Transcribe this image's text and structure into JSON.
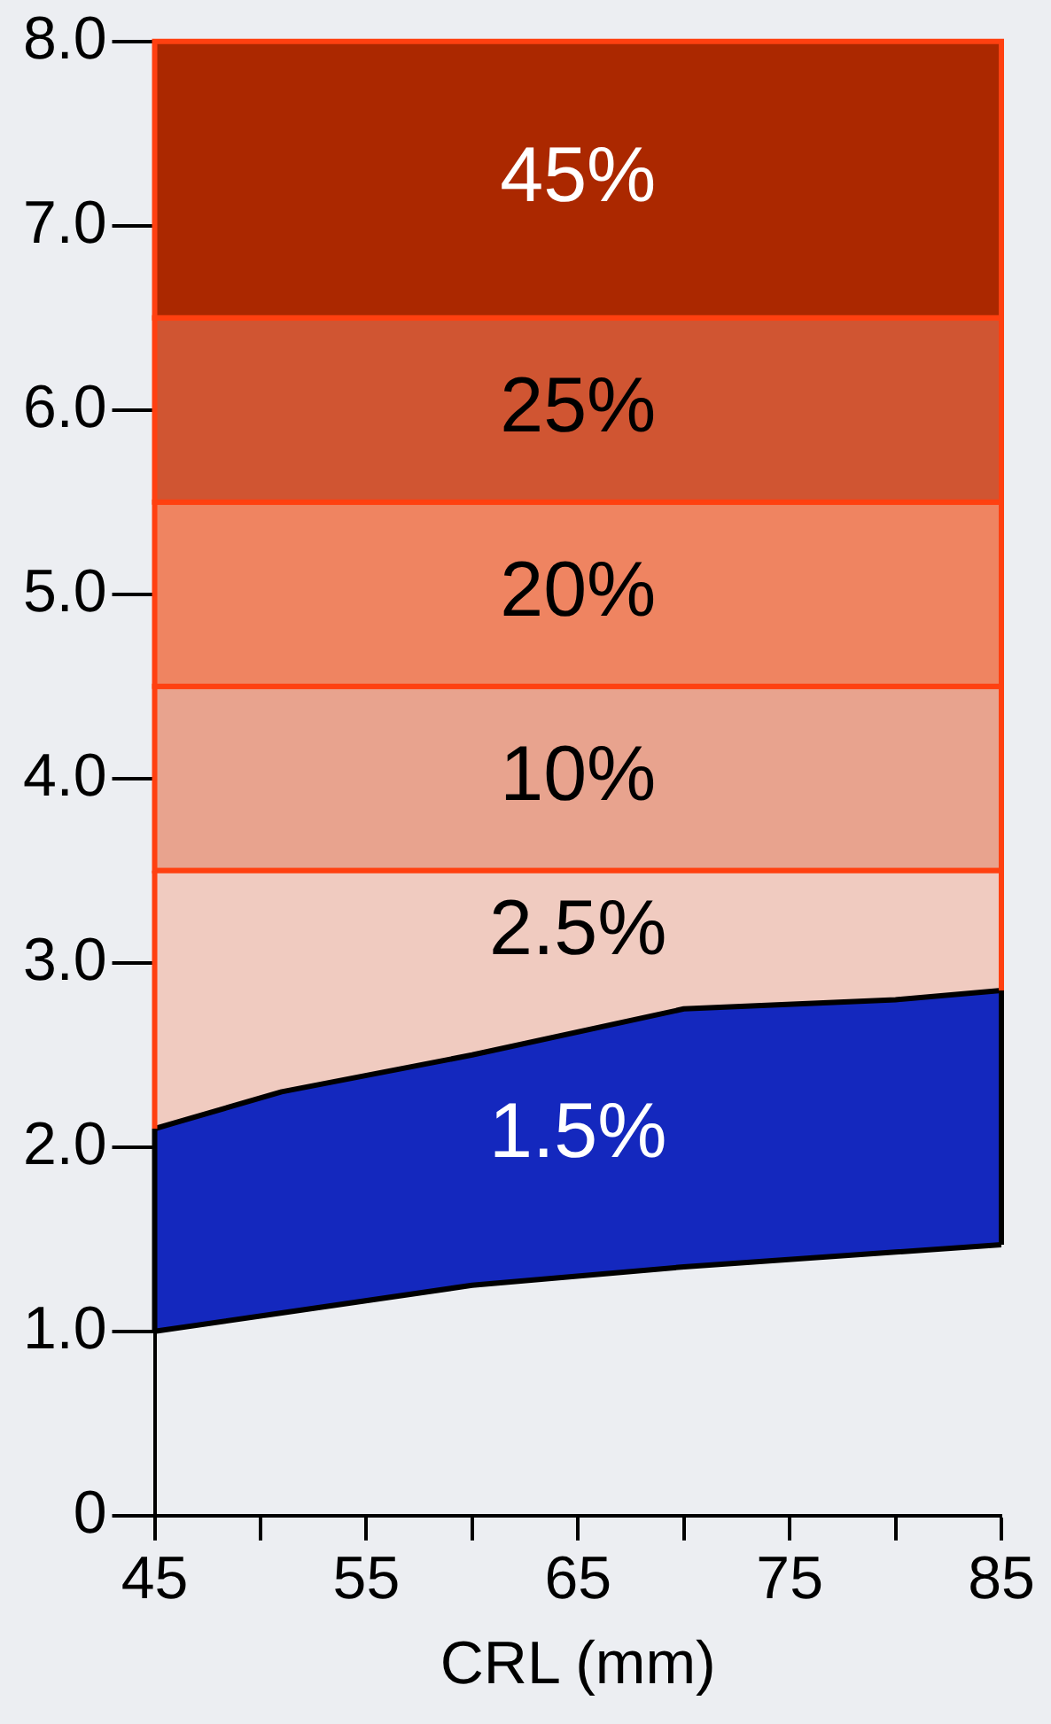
{
  "chart_data": {
    "type": "area",
    "xlabel": "CRL (mm)",
    "xlim": [
      45,
      85
    ],
    "xticks": [
      45,
      {
        "value": 50,
        "label": null
      },
      55,
      {
        "value": 60,
        "label": null
      },
      65,
      {
        "value": 70,
        "label": null
      },
      75,
      {
        "value": 80,
        "label": null
      },
      85
    ],
    "ylim": [
      0,
      8
    ],
    "yticks": [
      {
        "value": 0,
        "label": "0"
      },
      {
        "value": 1,
        "label": "1.0"
      },
      {
        "value": 2,
        "label": "2.0"
      },
      {
        "value": 3,
        "label": "3.0"
      },
      {
        "value": 4,
        "label": "4.0"
      },
      {
        "value": 5,
        "label": "5.0"
      },
      {
        "value": 6,
        "label": "6.0"
      },
      {
        "value": 7,
        "label": "7.0"
      },
      {
        "value": 8,
        "label": "8.0"
      }
    ],
    "bands": [
      {
        "axis": "y",
        "from": 3.5,
        "to": 4.5,
        "label": "10%",
        "color": "#e8a38e"
      },
      {
        "axis": "y",
        "from": 4.5,
        "to": 5.5,
        "label": "20%",
        "color": "#ef8461"
      },
      {
        "axis": "y",
        "from": 5.5,
        "to": 6.5,
        "label": "25%",
        "color": "#d05532"
      },
      {
        "axis": "y",
        "from": 6.5,
        "to": 8,
        "label": "45%",
        "color": "#ab2800"
      }
    ],
    "series": [
      {
        "type": "line",
        "color": "#000000",
        "x": [
          45,
          51,
          60,
          70,
          80,
          85
        ],
        "values": [
          1.0,
          1.1,
          1.25,
          1.35,
          1.43,
          1.47
        ]
      },
      {
        "name": "1.5%",
        "color": "#1428be",
        "x": [
          45,
          51,
          60,
          70,
          80,
          85
        ],
        "values": [
          2.1,
          2.3,
          2.5,
          2.75,
          2.8,
          2.85
        ]
      },
      {
        "name": "2.5%",
        "color": "#f0cbc0",
        "x": [
          45,
          51,
          60,
          70,
          80,
          85
        ],
        "values": [
          3.5,
          3.5,
          3.5,
          3.5,
          3.5,
          3.5
        ]
      }
    ],
    "grid": false,
    "legend": false
  }
}
